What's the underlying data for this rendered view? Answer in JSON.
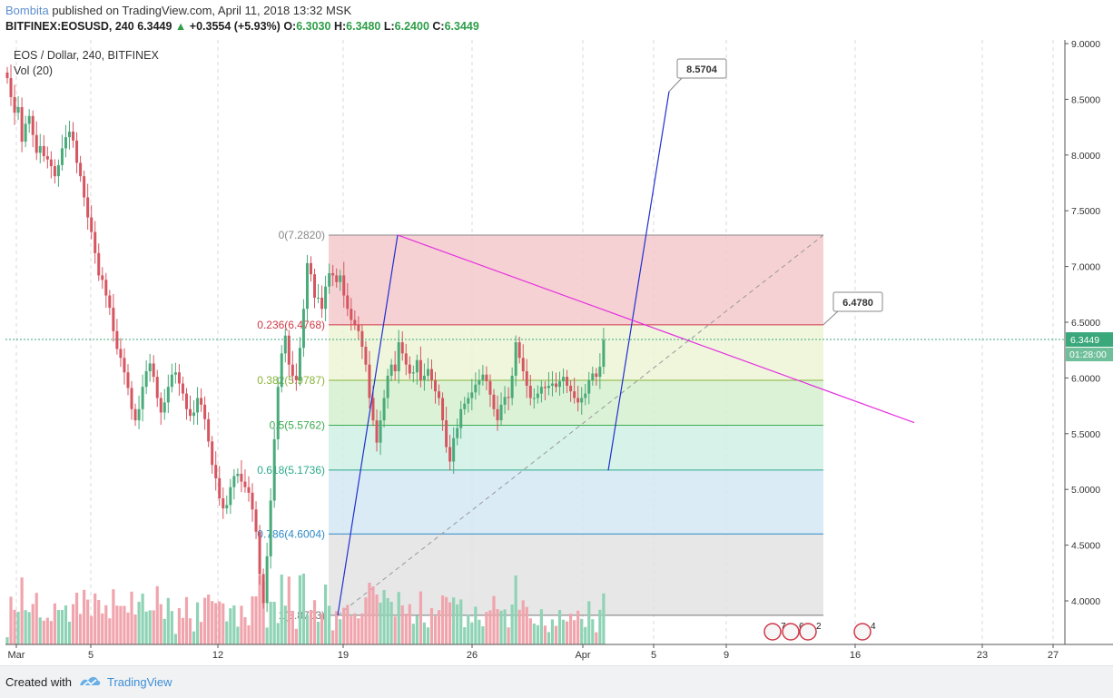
{
  "header": {
    "author": "Bombita",
    "published_text": "published on TradingView.com, April 11, 2018 13:32 MSK",
    "symbol_line": "BITFINEX:EOSUSD, 240",
    "last": "6.3449",
    "change": "+0.3554 (+5.93%)",
    "o_label": "O:",
    "o_val": "6.3030",
    "h_label": "H:",
    "h_val": "6.3480",
    "l_label": "L:",
    "l_val": "6.2400",
    "c_label": "C:",
    "c_val": "6.3449"
  },
  "legend": {
    "title": "EOS / Dollar, 240, BITFINEX",
    "vol": "Vol (20)"
  },
  "footer": {
    "created": "Created with",
    "brand": "TradingView"
  },
  "colors": {
    "up": "#4aaa7a",
    "down": "#d55560",
    "volume_up": "#8fd3b5",
    "volume_down": "#f0a5ad",
    "trend_blue": "#1f2fd0",
    "trend_magenta": "#e52fe0",
    "grid": "#d8d8d8",
    "vol_ma": "#f2a35b"
  },
  "chart_data": {
    "type": "candlestick",
    "symbol": "EOSUSD",
    "timeframe": "240",
    "exchange": "BITFINEX",
    "y_axis": {
      "ticks": [
        "9.0000",
        "8.5000",
        "8.0000",
        "7.5000",
        "7.0000",
        "6.5000",
        "6.0000",
        "5.5000",
        "5.0000",
        "4.5000",
        "4.0000"
      ],
      "range": [
        3.72,
        9.05
      ]
    },
    "x_axis": {
      "ticks": [
        "Mar",
        "5",
        "12",
        "19",
        "26",
        "Apr",
        "5",
        "9",
        "16",
        "23",
        "27"
      ]
    },
    "last_price_label": "6.3449",
    "countdown_label": "01:28:00",
    "fibonacci": [
      {
        "ratio": "0",
        "price": "7.2820",
        "label": "0(7.2820)",
        "color": "#888888"
      },
      {
        "ratio": "0.236",
        "price": "6.4768",
        "label": "0.236(6.4768)",
        "color": "#cf3b47"
      },
      {
        "ratio": "0.382",
        "price": "5.9787",
        "label": "0.382(5.9787)",
        "color": "#8ab43a"
      },
      {
        "ratio": "0.5",
        "price": "5.5762",
        "label": "0.5(5.5762)",
        "color": "#3caa50"
      },
      {
        "ratio": "0.618",
        "price": "5.1736",
        "label": "0.618(5.1736)",
        "color": "#2aaa8a"
      },
      {
        "ratio": "0.786",
        "price": "4.6004",
        "label": "0.786(4.6004)",
        "color": "#2e8ac7"
      },
      {
        "ratio": "1",
        "price": "3.8703",
        "label": "1(3.8703)",
        "color": "#777777"
      }
    ],
    "callouts": [
      {
        "label": "8.5704"
      },
      {
        "label": "6.4780"
      }
    ],
    "event_markers": [
      {
        "label": "7"
      },
      {
        "label": "6"
      },
      {
        "label": "2"
      },
      {
        "label": "4"
      }
    ],
    "closes": [
      8.69,
      8.52,
      8.38,
      8.43,
      8.12,
      8.28,
      8.35,
      8.18,
      8.02,
      8.08,
      7.99,
      7.96,
      7.9,
      7.81,
      7.91,
      8.06,
      8.16,
      8.21,
      8.13,
      7.93,
      7.81,
      7.62,
      7.44,
      7.31,
      7.12,
      6.92,
      6.88,
      6.74,
      6.63,
      6.42,
      6.26,
      6.18,
      6.05,
      5.91,
      5.72,
      5.62,
      5.72,
      5.92,
      6.06,
      6.13,
      6.01,
      5.82,
      5.69,
      5.78,
      5.92,
      6.03,
      6.05,
      5.95,
      5.86,
      5.72,
      5.66,
      5.69,
      5.82,
      5.76,
      5.63,
      5.43,
      5.22,
      5.1,
      4.92,
      4.83,
      4.86,
      5.02,
      5.12,
      5.14,
      5.07,
      5.02,
      4.97,
      4.82,
      4.62,
      4.24,
      3.98,
      4.4,
      4.9,
      5.45,
      5.92,
      6.22,
      6.38,
      6.12,
      6.02,
      5.98,
      6.27,
      6.62,
      7.03,
      6.93,
      6.72,
      6.72,
      6.62,
      6.82,
      6.94,
      6.92,
      6.86,
      6.92,
      6.74,
      6.62,
      6.52,
      6.48,
      6.42,
      6.28,
      6.12,
      5.82,
      5.62,
      5.42,
      5.62,
      5.82,
      6.02,
      6.12,
      6.06,
      6.32,
      6.22,
      6.12,
      6.04,
      6.05,
      6.16,
      5.98,
      6.02,
      6.08,
      5.98,
      5.88,
      5.82,
      5.62,
      5.38,
      5.25,
      5.46,
      5.55,
      5.72,
      5.77,
      5.82,
      5.87,
      5.94,
      5.98,
      6.03,
      5.97,
      5.85,
      5.72,
      5.62,
      5.76,
      5.83,
      5.82,
      6.02,
      6.32,
      6.18,
      6.06,
      5.93,
      5.82,
      5.82,
      5.86,
      5.92,
      5.91,
      5.93,
      5.95,
      5.92,
      5.97,
      6.01,
      5.93,
      5.88,
      5.82,
      5.78,
      5.82,
      5.86,
      5.98,
      6.04,
      6.01,
      6.1,
      6.34
    ]
  }
}
